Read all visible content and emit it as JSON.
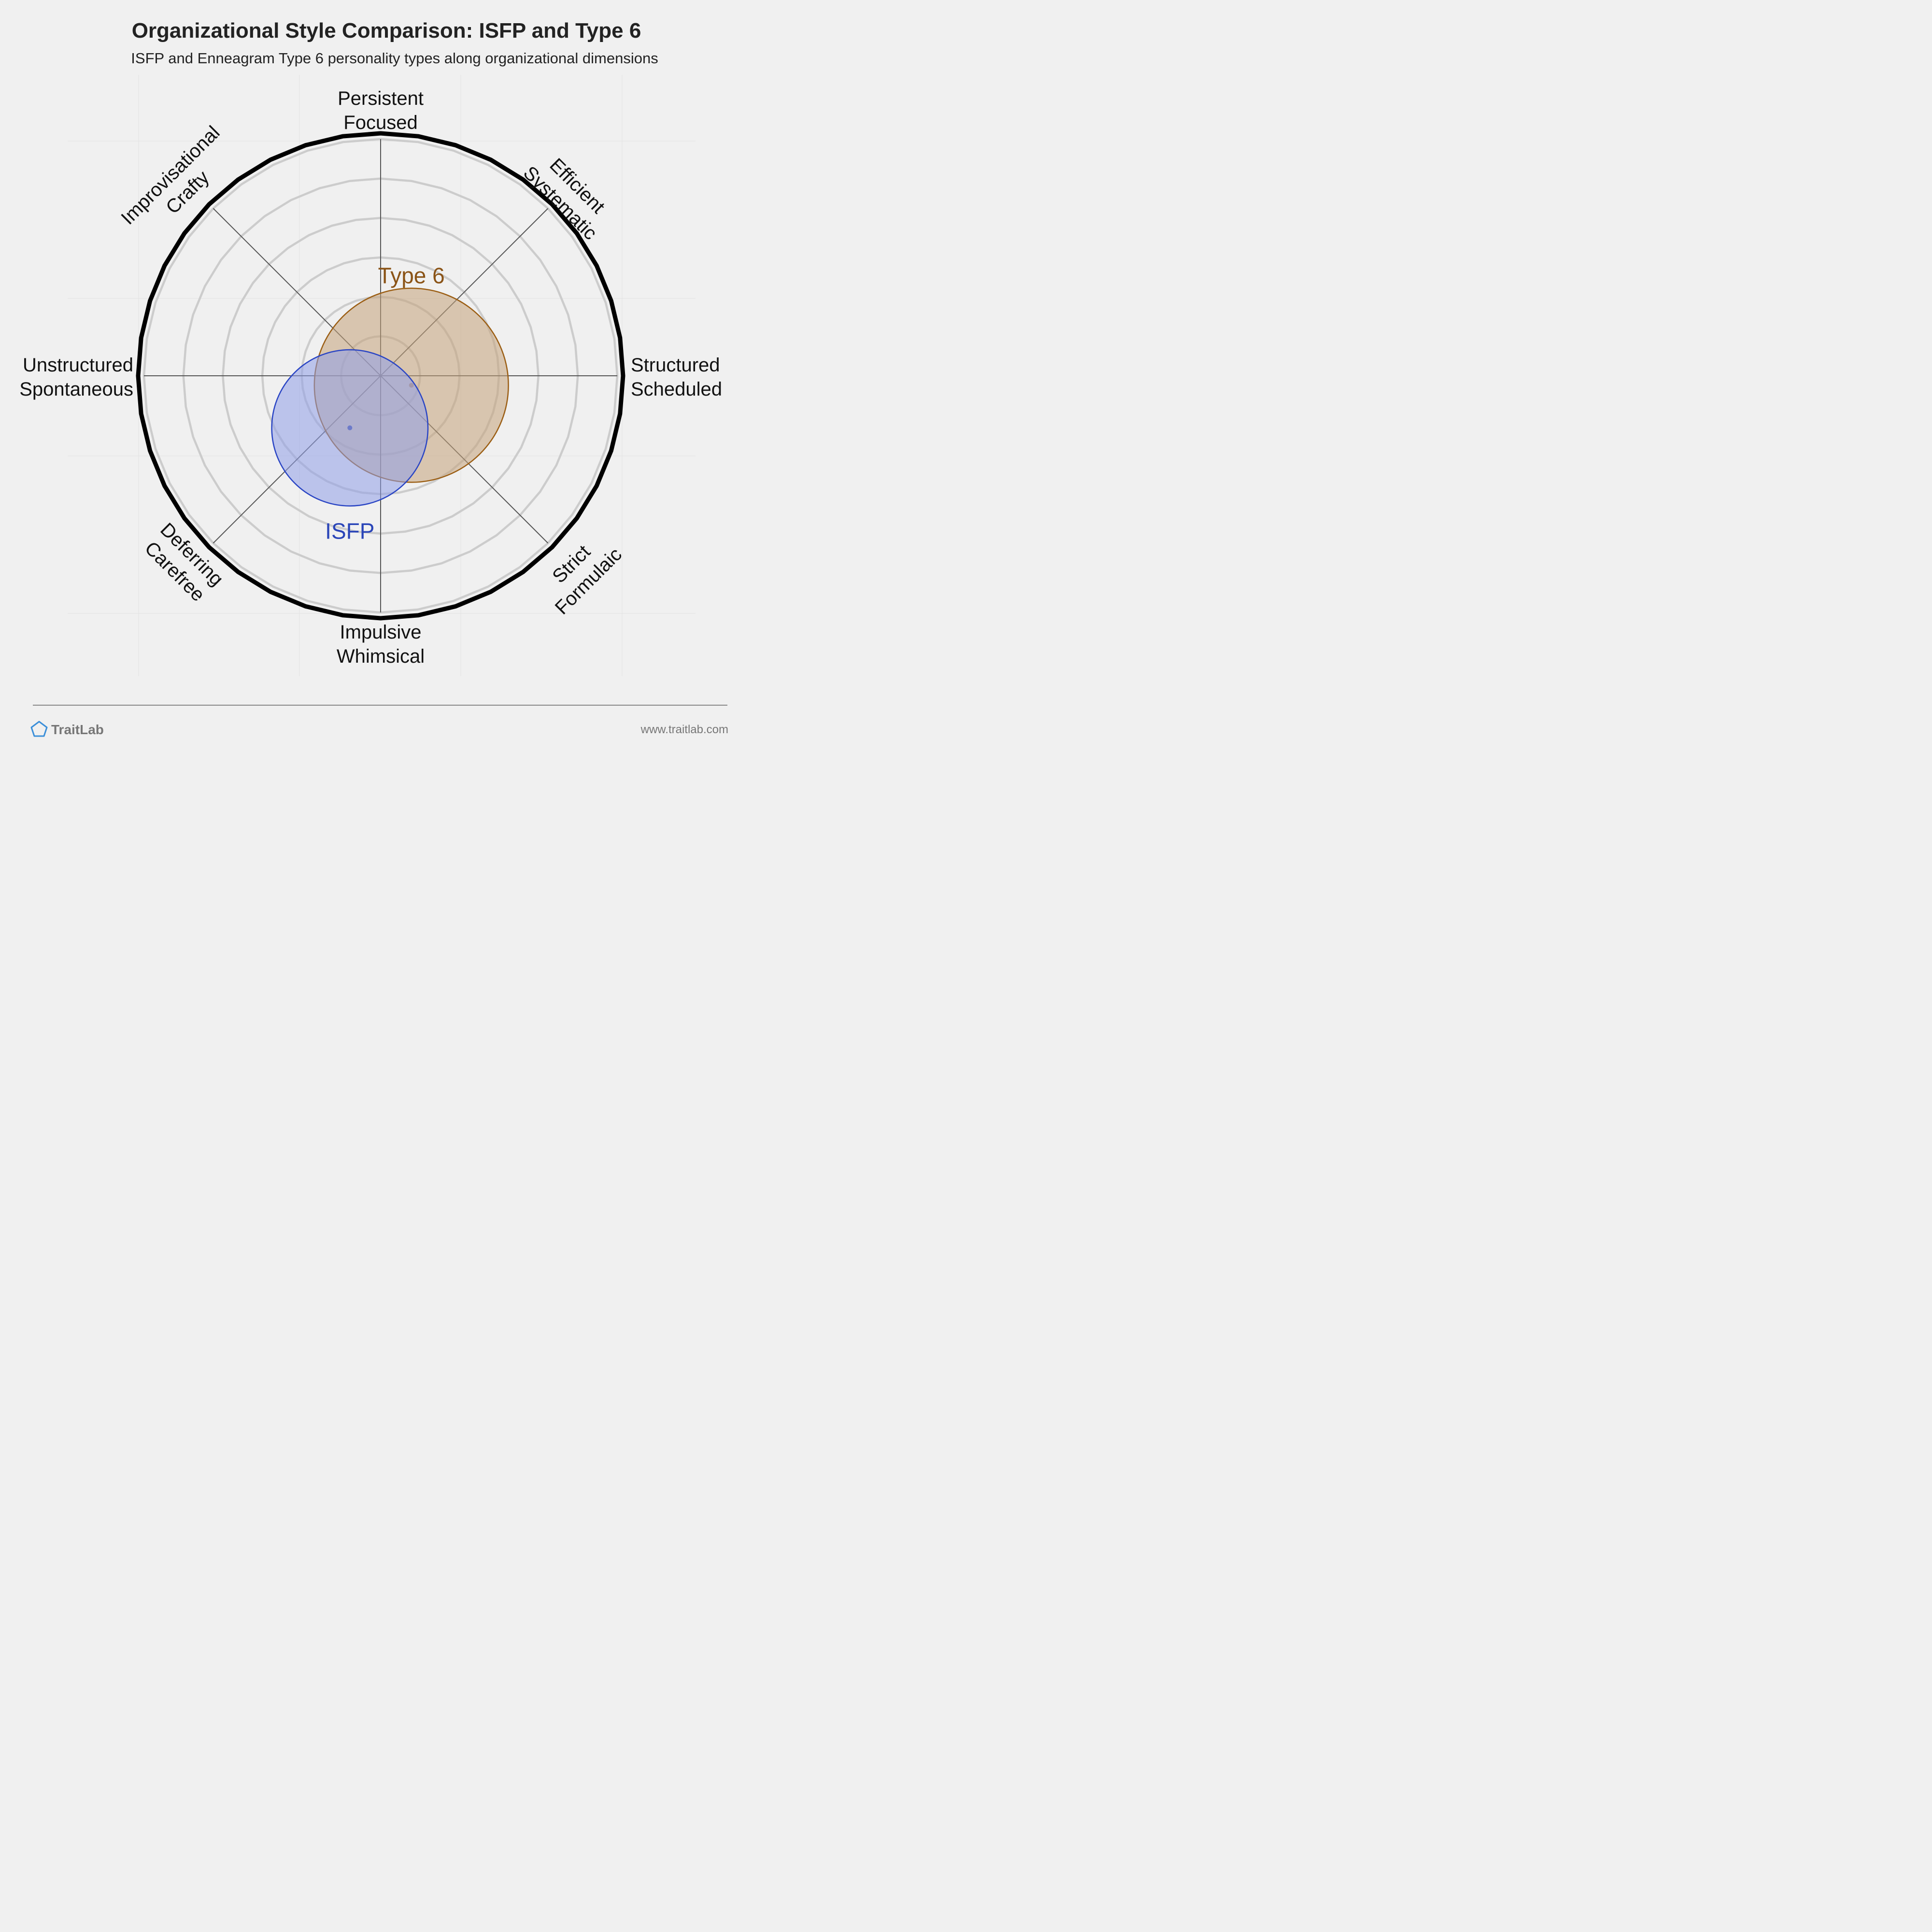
{
  "chart_data": {
    "type": "radar-overlap",
    "title": "Organizational Style Comparison: ISFP and Type 6",
    "subtitle": "ISFP and Enneagram Type 6 personality types along organizational dimensions",
    "axes": [
      {
        "lines": [
          "Persistent",
          "Focused"
        ]
      },
      {
        "lines": [
          "Efficient",
          "Systematic"
        ]
      },
      {
        "lines": [
          "Structured",
          "Scheduled"
        ]
      },
      {
        "lines": [
          "Strict",
          "Formulaic"
        ]
      },
      {
        "lines": [
          "Impulsive",
          "Whimsical"
        ]
      },
      {
        "lines": [
          "Deferring",
          "Carefree"
        ]
      },
      {
        "lines": [
          "Unstructured",
          "Spontaneous"
        ]
      },
      {
        "lines": [
          "Improvisational",
          "Crafty"
        ]
      }
    ],
    "rings": 6,
    "grid": true,
    "series": [
      {
        "name": "Type 6",
        "x": 0.13,
        "y": -0.04,
        "spread": 0.41,
        "fill": "#c4a27a",
        "stroke": "#9b5e14",
        "label_color": "#8a5316"
      },
      {
        "name": "ISFP",
        "x": -0.13,
        "y": -0.22,
        "spread": 0.33,
        "fill": "#8f9fe8",
        "stroke": "#2a45c4",
        "label_color": "#2a45b8"
      }
    ]
  },
  "footer": {
    "brand": "TraitLab",
    "url": "www.traitlab.com",
    "brand_color": "#3b8fd9"
  }
}
